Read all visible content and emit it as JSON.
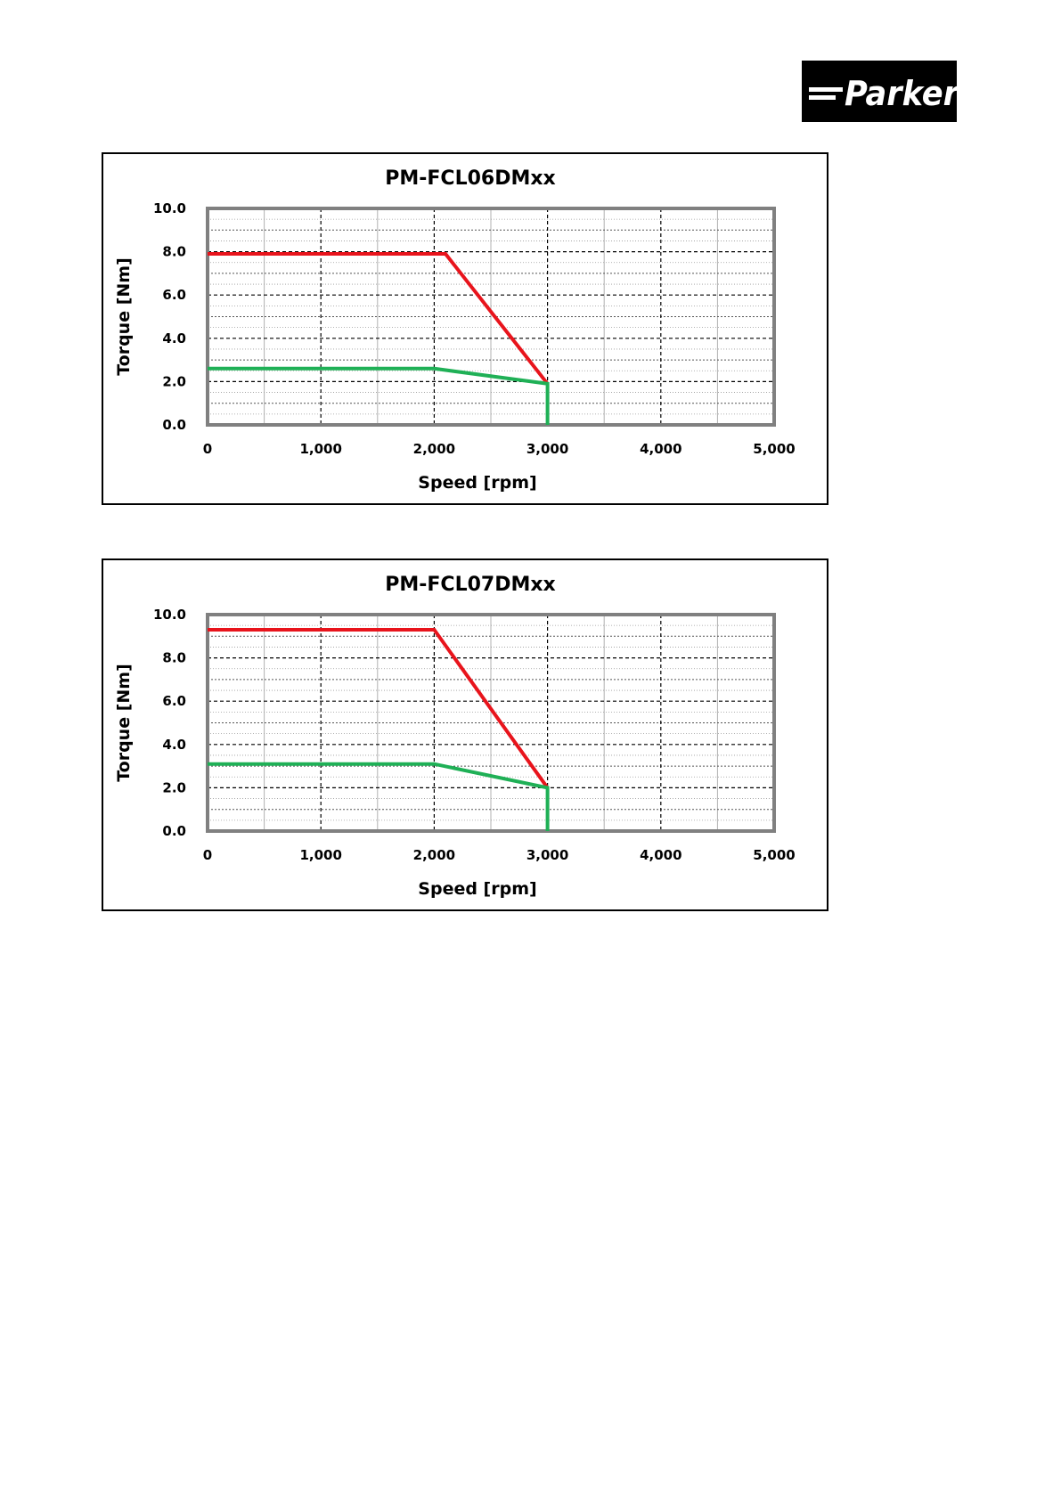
{
  "logo": {
    "text": "Parker",
    "icon": "parker-logo",
    "background": "#000000",
    "color": "#ffffff"
  },
  "colors": {
    "series_peak": "#e8141c",
    "series_continuous": "#1fb056",
    "plot_border": "#808080",
    "grid": "#000000"
  },
  "chart_data": [
    {
      "type": "line",
      "title": "PM-FCL06DMxx",
      "xlabel": "Speed [rpm]",
      "ylabel": "Torque [Nm]",
      "xlim": [
        0,
        5000
      ],
      "ylim": [
        0,
        10
      ],
      "xticks": [
        0,
        1000,
        2000,
        3000,
        4000,
        5000
      ],
      "xtick_labels": [
        "0",
        "1,000",
        "2,000",
        "3,000",
        "4,000",
        "5,000"
      ],
      "yticks": [
        0,
        2,
        4,
        6,
        8,
        10
      ],
      "ytick_labels": [
        "0.0",
        "2.0",
        "4.0",
        "6.0",
        "8.0",
        "10.0"
      ],
      "grid": true,
      "legend": false,
      "series": [
        {
          "color": "#e8141c",
          "points": [
            [
              0,
              7.9
            ],
            [
              2100,
              7.9
            ],
            [
              3000,
              1.9
            ]
          ]
        },
        {
          "color": "#1fb056",
          "points": [
            [
              0,
              2.6
            ],
            [
              2000,
              2.6
            ],
            [
              3000,
              1.9
            ],
            [
              3000,
              0
            ]
          ]
        }
      ]
    },
    {
      "type": "line",
      "title": "PM-FCL07DMxx",
      "xlabel": "Speed [rpm]",
      "ylabel": "Torque [Nm]",
      "xlim": [
        0,
        5000
      ],
      "ylim": [
        0,
        10
      ],
      "xticks": [
        0,
        1000,
        2000,
        3000,
        4000,
        5000
      ],
      "xtick_labels": [
        "0",
        "1,000",
        "2,000",
        "3,000",
        "4,000",
        "5,000"
      ],
      "yticks": [
        0,
        2,
        4,
        6,
        8,
        10
      ],
      "ytick_labels": [
        "0.0",
        "2.0",
        "4.0",
        "6.0",
        "8.0",
        "10.0"
      ],
      "grid": true,
      "legend": false,
      "series": [
        {
          "color": "#e8141c",
          "points": [
            [
              0,
              9.3
            ],
            [
              2000,
              9.3
            ],
            [
              3000,
              2.0
            ]
          ]
        },
        {
          "color": "#1fb056",
          "points": [
            [
              0,
              3.1
            ],
            [
              2000,
              3.1
            ],
            [
              3000,
              2.0
            ],
            [
              3000,
              0
            ]
          ]
        }
      ]
    }
  ]
}
